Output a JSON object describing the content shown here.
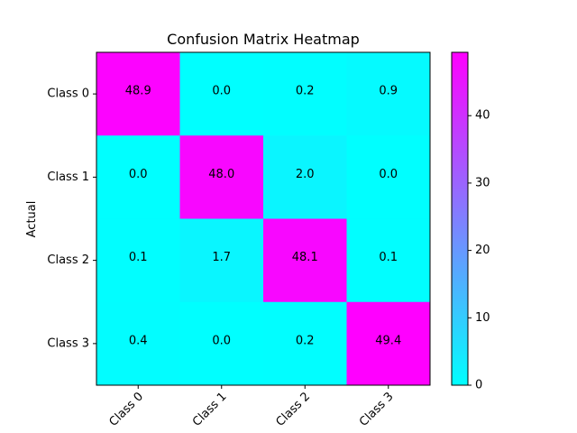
{
  "chart_data": {
    "type": "heatmap",
    "title": "Confusion Matrix Heatmap",
    "xlabel": "",
    "ylabel": "Actual",
    "x_categories": [
      "Class 0",
      "Class 1",
      "Class 2",
      "Class 3"
    ],
    "y_categories": [
      "Class 0",
      "Class 1",
      "Class 2",
      "Class 3"
    ],
    "values": [
      [
        48.9,
        0.0,
        0.2,
        0.9
      ],
      [
        0.0,
        48.0,
        2.0,
        0.0
      ],
      [
        0.1,
        1.7,
        48.1,
        0.1
      ],
      [
        0.4,
        0.0,
        0.2,
        49.4
      ]
    ],
    "value_labels": [
      [
        "48.9",
        "0.0",
        "0.2",
        "0.9"
      ],
      [
        "0.0",
        "48.0",
        "2.0",
        "0.0"
      ],
      [
        "0.1",
        "1.7",
        "48.1",
        "0.1"
      ],
      [
        "0.4",
        "0.0",
        "0.2",
        "49.4"
      ]
    ],
    "colormap": "cool",
    "colormap_start": "#00ffff",
    "colormap_end": "#ff00ff",
    "colorbar_range": [
      0,
      49.4
    ],
    "colorbar_ticks": [
      0,
      10,
      20,
      30,
      40
    ],
    "colorbar_tick_labels": [
      "0",
      "10",
      "20",
      "30",
      "40"
    ],
    "grid": false
  }
}
